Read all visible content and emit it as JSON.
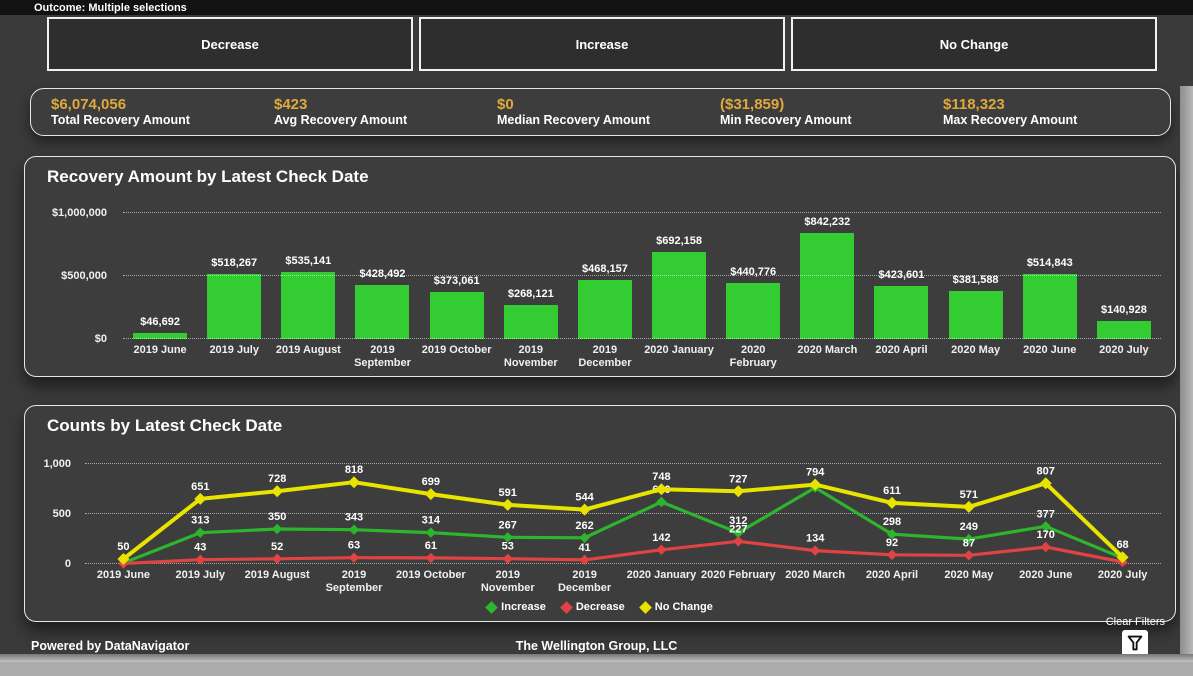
{
  "header": {
    "outcome_label": "Outcome: Multiple selections"
  },
  "filters": {
    "buttons": [
      {
        "label": "Decrease"
      },
      {
        "label": "Increase"
      },
      {
        "label": "No Change"
      }
    ]
  },
  "kpis": {
    "value_color": "#e0a93c",
    "items": [
      {
        "value": "$6,074,056",
        "label": "Total Recovery Amount"
      },
      {
        "value": "$423",
        "label": "Avg Recovery Amount"
      },
      {
        "value": "$0",
        "label": "Median Recovery Amount"
      },
      {
        "value": "($31,859)",
        "label": "Min Recovery Amount"
      },
      {
        "value": "$118,323",
        "label": "Max Recovery Amount"
      }
    ]
  },
  "chart_data": [
    {
      "type": "bar",
      "title": "Recovery Amount by Latest Check Date",
      "categories": [
        "2019 June",
        "2019 July",
        "2019 August",
        "2019\nSeptember",
        "2019 October",
        "2019\nNovember",
        "2019\nDecember",
        "2020 January",
        "2020 February",
        "2020 March",
        "2020 April",
        "2020 May",
        "2020 June",
        "2020 July"
      ],
      "values": [
        46692,
        518267,
        535141,
        428492,
        373061,
        268121,
        468157,
        692158,
        440776,
        842232,
        423601,
        381588,
        514843,
        140928
      ],
      "data_labels": [
        "$46,692",
        "$518,267",
        "$535,141",
        "$428,492",
        "$373,061",
        "$268,121",
        "$468,157",
        "$692,158",
        "$440,776",
        "$842,232",
        "$423,601",
        "$381,588",
        "$514,843",
        "$140,928"
      ],
      "xlabel": "",
      "ylabel": "",
      "ylim": [
        0,
        1000000
      ],
      "yticks": [
        {
          "label": "$0",
          "value": 0
        },
        {
          "label": "$500,000",
          "value": 500000
        },
        {
          "label": "$1,000,000",
          "value": 1000000
        }
      ],
      "bar_color": "#33cc33",
      "grid": "dotted-horizontal"
    },
    {
      "type": "line",
      "title": "Counts by Latest Check Date",
      "categories": [
        "2019 June",
        "2019 July",
        "2019 August",
        "2019\nSeptember",
        "2019 October",
        "2019\nNovember",
        "2019\nDecember",
        "2020 January",
        "2020 February",
        "2020 March",
        "2020 April",
        "2020 May",
        "2020 June",
        "2020 July"
      ],
      "ylim": [
        0,
        1000
      ],
      "yticks": [
        {
          "label": "0",
          "value": 0
        },
        {
          "label": "500",
          "value": 500
        },
        {
          "label": "1,000",
          "value": 1000
        }
      ],
      "grid": "dotted-horizontal",
      "legend_position": "bottom-center",
      "marker": "diamond",
      "series": [
        {
          "name": "Increase",
          "color": "#2db52d",
          "values": [
            10,
            313,
            350,
            343,
            314,
            267,
            262,
            620,
            312,
            764,
            298,
            249,
            377,
            60
          ],
          "labels": [
            "",
            "313",
            "350",
            "343",
            "314",
            "267",
            "262",
            "620",
            "312",
            "",
            "298",
            "249",
            "377",
            ""
          ]
        },
        {
          "name": "Decrease",
          "color": "#e04343",
          "values": [
            5,
            43,
            52,
            63,
            61,
            53,
            41,
            142,
            227,
            134,
            92,
            87,
            170,
            20
          ],
          "labels": [
            "",
            "43",
            "52",
            "63",
            "61",
            "53",
            "41",
            "142",
            "227",
            "134",
            "92",
            "87",
            "170",
            ""
          ]
        },
        {
          "name": "No Change",
          "color": "#e8e400",
          "values": [
            50,
            651,
            728,
            818,
            699,
            591,
            544,
            748,
            727,
            794,
            611,
            571,
            807,
            68
          ],
          "labels": [
            "50",
            "651",
            "728",
            "818",
            "699",
            "591",
            "544",
            "748",
            "727",
            "794",
            "611",
            "571",
            "807",
            "68"
          ]
        }
      ]
    }
  ],
  "footer": {
    "powered_by": "Powered by DataNavigator",
    "company": "The Wellington Group, LLC",
    "clear_filters_label": "Clear Filters",
    "clear_filters_icon": "funnel-icon"
  }
}
